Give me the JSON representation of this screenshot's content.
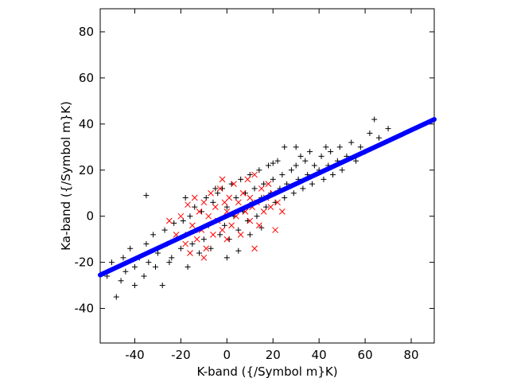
{
  "chart_data": {
    "type": "scatter",
    "title": "",
    "xlabel": "K-band ({/Symbol m}K)",
    "ylabel": "Ka-band ({/Symbol m}K)",
    "xlim": [
      -55,
      90
    ],
    "ylim": [
      -55,
      90
    ],
    "xticks": [
      "-40",
      "-20",
      "0",
      "20",
      "40",
      "60",
      "80"
    ],
    "yticks": [
      "-40",
      "-20",
      "0",
      "20",
      "40",
      "60",
      "80"
    ],
    "grid": false,
    "legend": "none",
    "series": [
      {
        "marker": "plus",
        "color": "#000000",
        "points": [
          [
            -52,
            -26
          ],
          [
            -50,
            -20
          ],
          [
            -48,
            -35
          ],
          [
            -46,
            -28
          ],
          [
            -45,
            -18
          ],
          [
            -44,
            -24
          ],
          [
            -42,
            -14
          ],
          [
            -40,
            -30
          ],
          [
            -40,
            -22
          ],
          [
            -38,
            -18
          ],
          [
            -36,
            -26
          ],
          [
            -35,
            -12
          ],
          [
            -34,
            -20
          ],
          [
            -32,
            -8
          ],
          [
            -31,
            -22
          ],
          [
            -30,
            -16
          ],
          [
            -28,
            -30
          ],
          [
            -27,
            -6
          ],
          [
            -26,
            -12
          ],
          [
            -25,
            -20
          ],
          [
            -24,
            -18
          ],
          [
            -23,
            -3
          ],
          [
            -22,
            -10
          ],
          [
            -20,
            -14
          ],
          [
            -19,
            -2
          ],
          [
            -18,
            -8
          ],
          [
            -17,
            -22
          ],
          [
            -16,
            0
          ],
          [
            -15,
            -12
          ],
          [
            -14,
            4
          ],
          [
            -13,
            -6
          ],
          [
            -12,
            -16
          ],
          [
            -11,
            2
          ],
          [
            -10,
            -10
          ],
          [
            -9,
            8
          ],
          [
            -8,
            -4
          ],
          [
            -7,
            -14
          ],
          [
            -6,
            6
          ],
          [
            -5,
            -2
          ],
          [
            -4,
            10
          ],
          [
            -3,
            -8
          ],
          [
            -2,
            12
          ],
          [
            -1,
            -4
          ],
          [
            0,
            4
          ],
          [
            1,
            -10
          ],
          [
            2,
            14
          ],
          [
            3,
            0
          ],
          [
            4,
            8
          ],
          [
            5,
            -6
          ],
          [
            6,
            16
          ],
          [
            7,
            2
          ],
          [
            8,
            10
          ],
          [
            9,
            -2
          ],
          [
            10,
            18
          ],
          [
            11,
            6
          ],
          [
            12,
            12
          ],
          [
            13,
            0
          ],
          [
            14,
            20
          ],
          [
            15,
            8
          ],
          [
            16,
            14
          ],
          [
            17,
            4
          ],
          [
            18,
            22
          ],
          [
            19,
            10
          ],
          [
            20,
            16
          ],
          [
            21,
            6
          ],
          [
            22,
            24
          ],
          [
            23,
            12
          ],
          [
            24,
            18
          ],
          [
            25,
            8
          ],
          [
            26,
            14
          ],
          [
            28,
            20
          ],
          [
            29,
            10
          ],
          [
            30,
            22
          ],
          [
            31,
            16
          ],
          [
            32,
            26
          ],
          [
            33,
            12
          ],
          [
            34,
            24
          ],
          [
            35,
            18
          ],
          [
            36,
            28
          ],
          [
            37,
            14
          ],
          [
            38,
            22
          ],
          [
            40,
            20
          ],
          [
            41,
            26
          ],
          [
            42,
            16
          ],
          [
            43,
            30
          ],
          [
            44,
            22
          ],
          [
            45,
            28
          ],
          [
            46,
            18
          ],
          [
            48,
            24
          ],
          [
            49,
            30
          ],
          [
            50,
            20
          ],
          [
            52,
            26
          ],
          [
            54,
            32
          ],
          [
            56,
            24
          ],
          [
            58,
            30
          ],
          [
            60,
            28
          ],
          [
            62,
            36
          ],
          [
            64,
            42
          ],
          [
            66,
            34
          ],
          [
            70,
            38
          ],
          [
            -18,
            8
          ],
          [
            -35,
            9
          ],
          [
            25,
            30
          ],
          [
            30,
            30
          ],
          [
            20,
            23
          ],
          [
            10,
            -8
          ],
          [
            5,
            -15
          ],
          [
            0,
            -18
          ],
          [
            15,
            -5
          ],
          [
            -5,
            12
          ]
        ]
      },
      {
        "marker": "x",
        "color": "#ff0000",
        "points": [
          [
            -25,
            -2
          ],
          [
            -22,
            -8
          ],
          [
            -20,
            0
          ],
          [
            -18,
            -12
          ],
          [
            -17,
            5
          ],
          [
            -15,
            -4
          ],
          [
            -14,
            8
          ],
          [
            -13,
            -10
          ],
          [
            -12,
            2
          ],
          [
            -11,
            -6
          ],
          [
            -10,
            6
          ],
          [
            -9,
            -14
          ],
          [
            -8,
            0
          ],
          [
            -7,
            10
          ],
          [
            -6,
            -8
          ],
          [
            -5,
            4
          ],
          [
            -4,
            -2
          ],
          [
            -3,
            12
          ],
          [
            -2,
            -6
          ],
          [
            -1,
            6
          ],
          [
            0,
            -10
          ],
          [
            0,
            2
          ],
          [
            1,
            8
          ],
          [
            2,
            -4
          ],
          [
            3,
            14
          ],
          [
            4,
            0
          ],
          [
            5,
            6
          ],
          [
            6,
            -8
          ],
          [
            7,
            10
          ],
          [
            8,
            2
          ],
          [
            9,
            16
          ],
          [
            10,
            -2
          ],
          [
            10,
            8
          ],
          [
            11,
            4
          ],
          [
            12,
            18
          ],
          [
            13,
            6
          ],
          [
            14,
            -4
          ],
          [
            15,
            12
          ],
          [
            16,
            2
          ],
          [
            17,
            8
          ],
          [
            18,
            14
          ],
          [
            19,
            4
          ],
          [
            20,
            10
          ],
          [
            21,
            -6
          ],
          [
            22,
            6
          ],
          [
            24,
            2
          ],
          [
            -16,
            -16
          ],
          [
            -10,
            -18
          ],
          [
            12,
            -14
          ],
          [
            -2,
            16
          ]
        ]
      },
      {
        "marker": "line",
        "color": "#0000ff",
        "points": [
          [
            -55,
            -25.5
          ],
          [
            90,
            42
          ]
        ]
      }
    ]
  }
}
